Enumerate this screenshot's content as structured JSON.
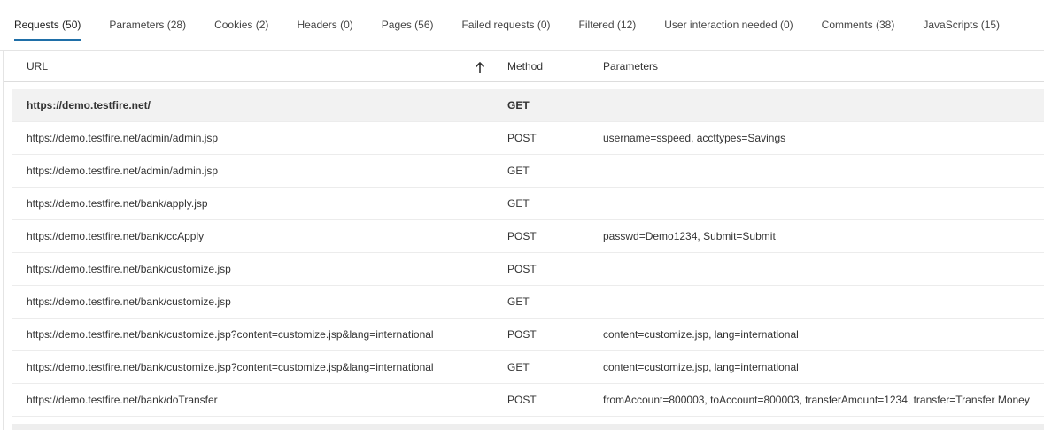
{
  "tabs": [
    "Requests (50)",
    "Parameters (28)",
    "Cookies (2)",
    "Headers (0)",
    "Pages (56)",
    "Failed requests (0)",
    "Filtered (12)",
    "User interaction needed (0)",
    "Comments (38)",
    "JavaScripts (15)"
  ],
  "table": {
    "columns": [
      "URL",
      "Method",
      "Parameters"
    ],
    "rows": [
      {
        "url": "https://demo.testfire.net/",
        "method": "GET"
      },
      {
        "url": "https://demo.testfire.net/admin/admin.jsp",
        "method": "POST",
        "parameters": "username=sspeed, accttypes=Savings"
      },
      {
        "url": "https://demo.testfire.net/admin/admin.jsp",
        "method": "GET"
      },
      {
        "url": "https://demo.testfire.net/bank/apply.jsp",
        "method": "GET"
      },
      {
        "url": "https://demo.testfire.net/bank/ccApply",
        "method": "POST",
        "parameters": "passwd=Demo1234, Submit=Submit"
      },
      {
        "url": "https://demo.testfire.net/bank/customize.jsp",
        "method": "POST"
      },
      {
        "url": "https://demo.testfire.net/bank/customize.jsp",
        "method": "GET"
      },
      {
        "url": "https://demo.testfire.net/bank/customize.jsp?content=customize.jsp&lang=international",
        "method": "POST",
        "parameters": "content=customize.jsp, lang=international"
      },
      {
        "url": "https://demo.testfire.net/bank/customize.jsp?content=customize.jsp&lang=international",
        "method": "GET",
        "parameters": "content=customize.jsp, lang=international"
      },
      {
        "url": "https://demo.testfire.net/bank/doTransfer",
        "method": "POST",
        "parameters": "fromAccount=800003, toAccount=800003, transferAmount=1234, transfer=Transfer Money"
      }
    ]
  }
}
